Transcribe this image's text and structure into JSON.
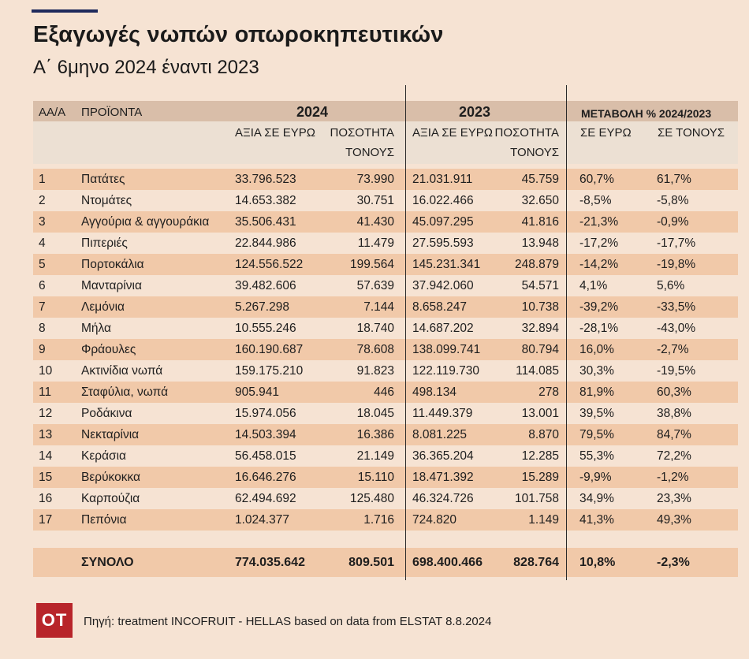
{
  "title": "Εξαγωγές νωπών οπωροκηπευτικών",
  "subtitle": "Α΄ 6μηνο 2024  έναντι 2023",
  "headers": {
    "aa": "ΑΑ/Α",
    "product": "ΠΡΟΪΟΝΤΑ",
    "year_2024": "2024",
    "year_2023": "2023",
    "change": "ΜΕΤΑΒΟΛΗ % 2024/2023",
    "value_eur": "ΑΞΙΑ ΣΕ ΕΥΡΩ",
    "qty_line1": "ΠΟΣΟΤΗΤΑ",
    "qty_line2": "ΤΟΝΟΥΣ",
    "in_eur": "ΣΕ ΕΥΡΩ",
    "in_tons": "ΣΕ ΤΟΝΟΥΣ"
  },
  "rows": [
    {
      "aa": "1",
      "product": "Πατάτες",
      "v24": "33.796.523",
      "t24": "73.990",
      "v23": "21.031.911",
      "t23": "45.759",
      "ce": "60,7%",
      "ct": "61,7%"
    },
    {
      "aa": "2",
      "product": "Ντομάτες",
      "v24": "14.653.382",
      "t24": "30.751",
      "v23": "16.022.466",
      "t23": "32.650",
      "ce": "-8,5%",
      "ct": "-5,8%"
    },
    {
      "aa": "3",
      "product": "Αγγούρια & αγγουράκια",
      "v24": "35.506.431",
      "t24": "41.430",
      "v23": "45.097.295",
      "t23": "41.816",
      "ce": "-21,3%",
      "ct": "-0,9%"
    },
    {
      "aa": "4",
      "product": "Πιπεριές",
      "v24": "22.844.986",
      "t24": "11.479",
      "v23": "27.595.593",
      "t23": "13.948",
      "ce": "-17,2%",
      "ct": "-17,7%"
    },
    {
      "aa": "5",
      "product": "Πορτοκάλια",
      "v24": "124.556.522",
      "t24": "199.564",
      "v23": "145.231.341",
      "t23": "248.879",
      "ce": "-14,2%",
      "ct": "-19,8%"
    },
    {
      "aa": "6",
      "product": "Μανταρίνια",
      "v24": "39.482.606",
      "t24": "57.639",
      "v23": "37.942.060",
      "t23": "54.571",
      "ce": "4,1%",
      "ct": "5,6%"
    },
    {
      "aa": "7",
      "product": "Λεμόνια",
      "v24": "5.267.298",
      "t24": "7.144",
      "v23": "8.658.247",
      "t23": "10.738",
      "ce": "-39,2%",
      "ct": "-33,5%"
    },
    {
      "aa": "8",
      "product": "Μήλα",
      "v24": "10.555.246",
      "t24": "18.740",
      "v23": "14.687.202",
      "t23": "32.894",
      "ce": "-28,1%",
      "ct": "-43,0%"
    },
    {
      "aa": "9",
      "product": "Φράουλες",
      "v24": "160.190.687",
      "t24": "78.608",
      "v23": "138.099.741",
      "t23": "80.794",
      "ce": "16,0%",
      "ct": "-2,7%"
    },
    {
      "aa": "10",
      "product": "Ακτινίδια νωπά",
      "v24": "159.175.210",
      "t24": "91.823",
      "v23": "122.119.730",
      "t23": "114.085",
      "ce": "30,3%",
      "ct": "-19,5%"
    },
    {
      "aa": "11",
      "product": "Σταφύλια, νωπά",
      "v24": "905.941",
      "t24": "446",
      "v23": "498.134",
      "t23": "278",
      "ce": "81,9%",
      "ct": "60,3%"
    },
    {
      "aa": "12",
      "product": "Ροδάκινα",
      "v24": "15.974.056",
      "t24": "18.045",
      "v23": "11.449.379",
      "t23": "13.001",
      "ce": "39,5%",
      "ct": "38,8%"
    },
    {
      "aa": "13",
      "product": "Νεκταρίνια",
      "v24": "14.503.394",
      "t24": "16.386",
      "v23": "8.081.225",
      "t23": "8.870",
      "ce": "79,5%",
      "ct": "84,7%"
    },
    {
      "aa": "14",
      "product": "Κεράσια",
      "v24": "56.458.015",
      "t24": "21.149",
      "v23": "36.365.204",
      "t23": "12.285",
      "ce": "55,3%",
      "ct": "72,2%"
    },
    {
      "aa": "15",
      "product": "Βερύκοκκα",
      "v24": "16.646.276",
      "t24": "15.110",
      "v23": "18.471.392",
      "t23": "15.289",
      "ce": "-9,9%",
      "ct": "-1,2%"
    },
    {
      "aa": "16",
      "product": "Καρπούζια",
      "v24": "62.494.692",
      "t24": "125.480",
      "v23": "46.324.726",
      "t23": "101.758",
      "ce": "34,9%",
      "ct": "23,3%"
    },
    {
      "aa": "17",
      "product": "Πεπόνια",
      "v24": "1.024.377",
      "t24": "1.716",
      "v23": "724.820",
      "t23": "1.149",
      "ce": "41,3%",
      "ct": "49,3%"
    }
  ],
  "total": {
    "label": "ΣΥΝΟΛΟ",
    "v24": "774.035.642",
    "t24": "809.501",
    "v23": "698.400.466",
    "t23": "828.764",
    "ce": "10,8%",
    "ct": "-2,3%"
  },
  "logo": "OT",
  "source": "Πηγή:  treatment INCOFRUIT - HELLAS based on data from ELSTAT 8.8.2024",
  "colors": {
    "accent": "#1f2a5c",
    "header_band": "#d9bea9",
    "subheader_band": "#ece0d3",
    "stripe": "#f1c9a9",
    "background": "#f6e3d3",
    "logo": "#b8252a"
  }
}
